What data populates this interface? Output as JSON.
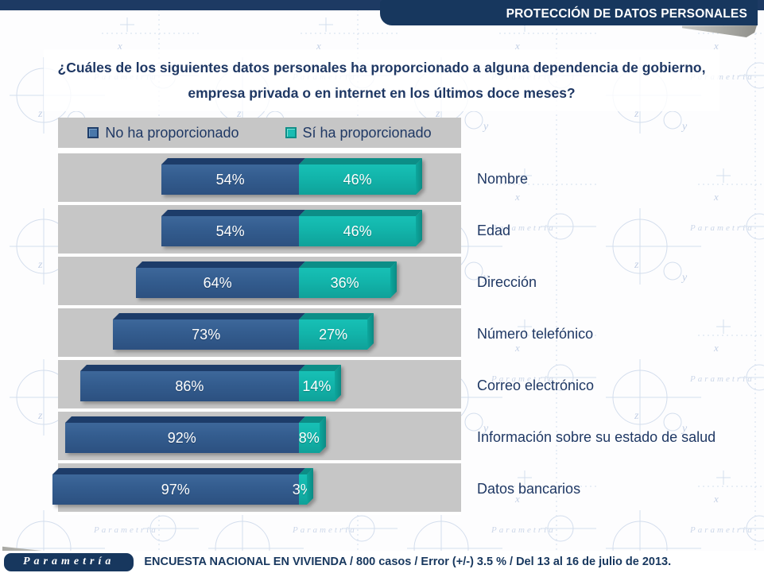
{
  "header": {
    "banner": "PROTECCIÓN DE DATOS PERSONALES"
  },
  "title": "¿Cuáles de los siguientes datos personales ha proporcionado a alguna dependencia de gobierno, empresa privada o en internet en los últimos doce meses?",
  "chart_data": {
    "type": "bar",
    "variant": "horizontal-stacked-diverging",
    "categories": [
      "Nombre",
      "Edad",
      "Dirección",
      "Número telefónico",
      "Correo electrónico",
      "Información sobre su estado de salud",
      "Datos bancarios"
    ],
    "series": [
      {
        "name": "No ha proporcionado",
        "color": "#335c8e",
        "values": [
          54,
          54,
          64,
          73,
          86,
          92,
          97
        ]
      },
      {
        "name": "Sí ha proporcionado",
        "color": "#12b4aa",
        "values": [
          46,
          46,
          36,
          27,
          14,
          8,
          3
        ]
      }
    ],
    "value_suffix": "%",
    "xlim": [
      0,
      100
    ],
    "legend_position": "top",
    "grid": false,
    "plot_background": "#c6c6c6"
  },
  "footer": {
    "logo": "Parametría",
    "note": "ENCUESTA NACIONAL EN VIVIENDA / 800 casos / Error (+/-) 3.5 % / Del 13 al 16 de julio de 2013."
  },
  "colors": {
    "navy": "#17375e",
    "no_series": "#335c8e",
    "si_series": "#12b4aa",
    "plot_bg": "#c6c6c6"
  }
}
